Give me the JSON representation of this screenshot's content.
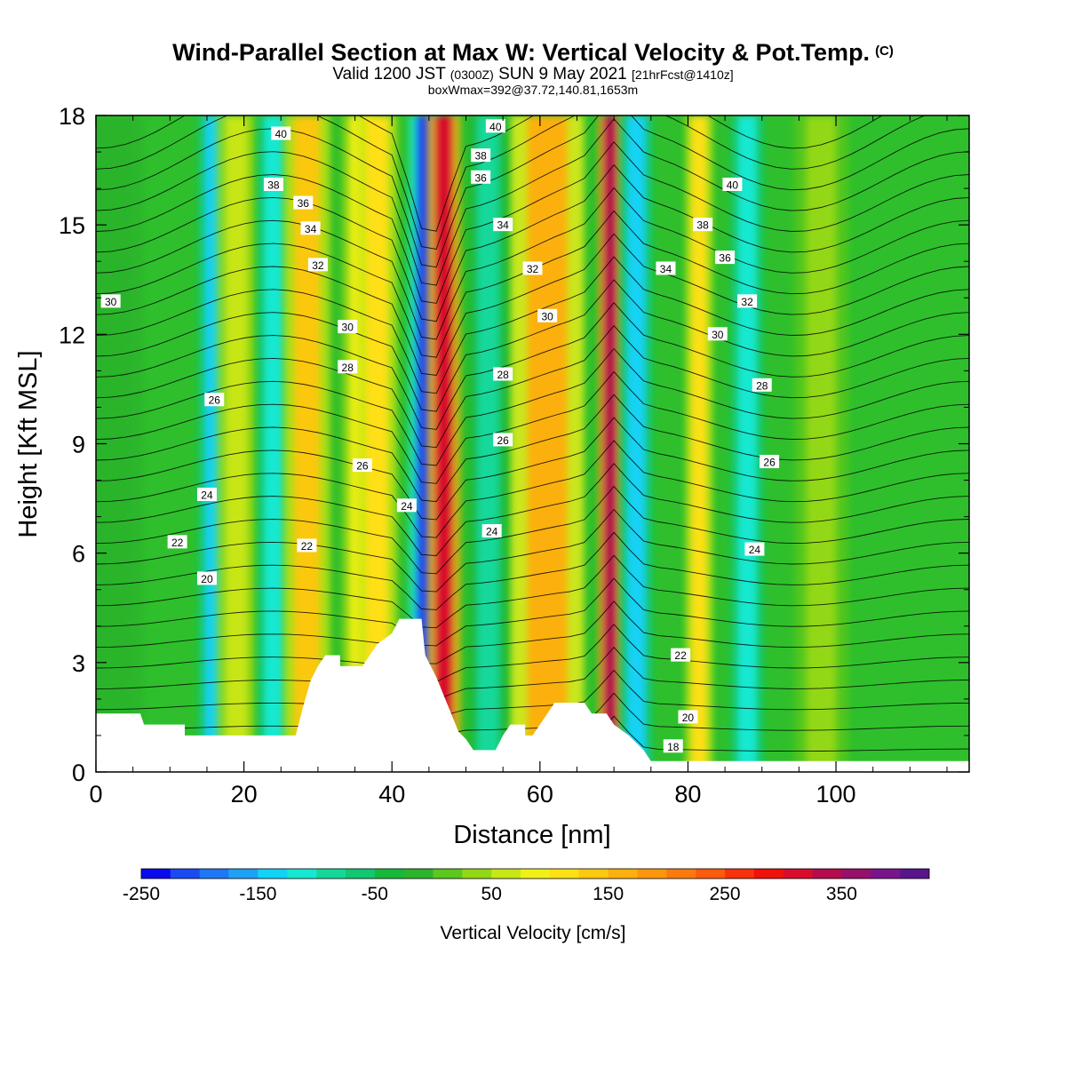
{
  "header": {
    "title": "Wind-Parallel Section at Max W: Vertical Velocity & Pot.Temp.",
    "title_mark": "(C)",
    "valid_prefix": "Valid 1200 JST",
    "valid_utc": "(0300Z)",
    "valid_date": "SUN 9 May 2021",
    "forecast": "[21hrFcst@1410z]",
    "box_info": "boxWmax=392@37.72,140.81,1653m"
  },
  "chart_data": {
    "type": "heatmap",
    "xlabel": "Distance [nm]",
    "ylabel": "Height [Kft MSL]",
    "xlim": [
      0,
      118
    ],
    "ylim": [
      0,
      18
    ],
    "x_ticks": [
      0,
      20,
      40,
      60,
      80,
      100
    ],
    "y_ticks": [
      0,
      3,
      6,
      9,
      12,
      15,
      18
    ],
    "background_color": "#2fbf2c",
    "colorbar": {
      "label": "Vertical Velocity [cm/s]",
      "tick_labels": [
        -250,
        -150,
        -50,
        50,
        150,
        250,
        350
      ],
      "min": -250,
      "max": 425,
      "step": 25,
      "colors": [
        "#0a0aee",
        "#1a4af3",
        "#1e78f5",
        "#1ea2f5",
        "#12d2f5",
        "#16e8d2",
        "#14d89a",
        "#10c870",
        "#16b83a",
        "#2cb42c",
        "#5ac81c",
        "#92d814",
        "#c8e614",
        "#f0f016",
        "#ffe012",
        "#fcc810",
        "#fcb00e",
        "#fc960c",
        "#fc7a0c",
        "#fc5a0c",
        "#f8320c",
        "#f0100c",
        "#d80c2c",
        "#b40c4c",
        "#96106c",
        "#7a148c",
        "#5a148c"
      ]
    },
    "velocity_bands": [
      {
        "x": 2,
        "w": 5,
        "v": -15
      },
      {
        "x": 16,
        "w": 2.5,
        "v": -130
      },
      {
        "x": 19,
        "w": 3,
        "v": 55
      },
      {
        "x": 24,
        "w": 2.5,
        "v": -110
      },
      {
        "x": 28.5,
        "w": 3.5,
        "v": 130
      },
      {
        "x": 35.5,
        "w": 2.5,
        "v": 85
      },
      {
        "x": 38,
        "w": 3,
        "v": 100
      },
      {
        "x": 44.5,
        "w": 2.5,
        "v": -225
      },
      {
        "x": 47,
        "w": 2.5,
        "v": 300
      },
      {
        "x": 53,
        "w": 3,
        "v": -85
      },
      {
        "x": 61,
        "w": 5.5,
        "v": 155
      },
      {
        "x": 69.5,
        "w": 1.8,
        "v": 330
      },
      {
        "x": 73,
        "w": 2.5,
        "v": -130
      },
      {
        "x": 81.5,
        "w": 2,
        "v": 100
      },
      {
        "x": 88,
        "w": 2.5,
        "v": -115
      },
      {
        "x": 98,
        "w": 4,
        "v": 40
      }
    ],
    "terrain": [
      [
        0,
        1.6
      ],
      [
        6,
        1.6
      ],
      [
        6.5,
        1.3
      ],
      [
        12,
        1.3
      ],
      [
        12,
        1.0
      ],
      [
        27,
        1.0
      ],
      [
        28,
        1.8
      ],
      [
        29,
        2.5
      ],
      [
        30,
        2.9
      ],
      [
        31,
        3.2
      ],
      [
        33,
        3.2
      ],
      [
        33,
        2.9
      ],
      [
        36,
        2.9
      ],
      [
        37,
        3.2
      ],
      [
        38,
        3.5
      ],
      [
        40,
        3.8
      ],
      [
        41,
        4.2
      ],
      [
        44,
        4.2
      ],
      [
        44.5,
        3.2
      ],
      [
        46,
        2.6
      ],
      [
        47,
        2.1
      ],
      [
        48,
        1.6
      ],
      [
        49,
        1.1
      ],
      [
        50,
        0.9
      ],
      [
        51,
        0.6
      ],
      [
        54,
        0.6
      ],
      [
        55,
        1.0
      ],
      [
        56,
        1.3
      ],
      [
        58,
        1.3
      ],
      [
        58,
        1.0
      ],
      [
        59,
        1.0
      ],
      [
        60,
        1.3
      ],
      [
        62,
        1.9
      ],
      [
        66,
        1.9
      ],
      [
        67,
        1.6
      ],
      [
        69,
        1.6
      ],
      [
        70,
        1.3
      ],
      [
        72,
        1.0
      ],
      [
        74,
        0.6
      ],
      [
        75,
        0.3
      ],
      [
        118,
        0.3
      ]
    ],
    "theta_label_series": "Pot.Temp. contours (K-273)",
    "contour_labels": [
      {
        "x": 2,
        "y": 12.9,
        "t": "30"
      },
      {
        "x": 25,
        "y": 17.5,
        "t": "40"
      },
      {
        "x": 24,
        "y": 16.1,
        "t": "38"
      },
      {
        "x": 28,
        "y": 15.6,
        "t": "36"
      },
      {
        "x": 29,
        "y": 14.9,
        "t": "34"
      },
      {
        "x": 30,
        "y": 13.9,
        "t": "32"
      },
      {
        "x": 34,
        "y": 12.2,
        "t": "30"
      },
      {
        "x": 34,
        "y": 11.1,
        "t": "28"
      },
      {
        "x": 16,
        "y": 10.2,
        "t": "26"
      },
      {
        "x": 36,
        "y": 8.4,
        "t": "26"
      },
      {
        "x": 15,
        "y": 7.6,
        "t": "24"
      },
      {
        "x": 11,
        "y": 6.3,
        "t": "22"
      },
      {
        "x": 15,
        "y": 5.3,
        "t": "20"
      },
      {
        "x": 28.5,
        "y": 6.2,
        "t": "22"
      },
      {
        "x": 42,
        "y": 7.3,
        "t": "24"
      },
      {
        "x": 54,
        "y": 17.7,
        "t": "40"
      },
      {
        "x": 52,
        "y": 16.9,
        "t": "38"
      },
      {
        "x": 52,
        "y": 16.3,
        "t": "36"
      },
      {
        "x": 55,
        "y": 15.0,
        "t": "34"
      },
      {
        "x": 59,
        "y": 13.8,
        "t": "32"
      },
      {
        "x": 61,
        "y": 12.5,
        "t": "30"
      },
      {
        "x": 55,
        "y": 10.9,
        "t": "28"
      },
      {
        "x": 55,
        "y": 9.1,
        "t": "26"
      },
      {
        "x": 53.5,
        "y": 6.6,
        "t": "24"
      },
      {
        "x": 86,
        "y": 16.1,
        "t": "40"
      },
      {
        "x": 82,
        "y": 15.0,
        "t": "38"
      },
      {
        "x": 85,
        "y": 14.1,
        "t": "36"
      },
      {
        "x": 77,
        "y": 13.8,
        "t": "34"
      },
      {
        "x": 88,
        "y": 12.9,
        "t": "32"
      },
      {
        "x": 84,
        "y": 12.0,
        "t": "30"
      },
      {
        "x": 90,
        "y": 10.6,
        "t": "28"
      },
      {
        "x": 91,
        "y": 8.5,
        "t": "26"
      },
      {
        "x": 89,
        "y": 6.1,
        "t": "24"
      },
      {
        "x": 79,
        "y": 3.2,
        "t": "22"
      },
      {
        "x": 80,
        "y": 1.5,
        "t": "20"
      },
      {
        "x": 78,
        "y": 0.7,
        "t": "18"
      }
    ]
  }
}
